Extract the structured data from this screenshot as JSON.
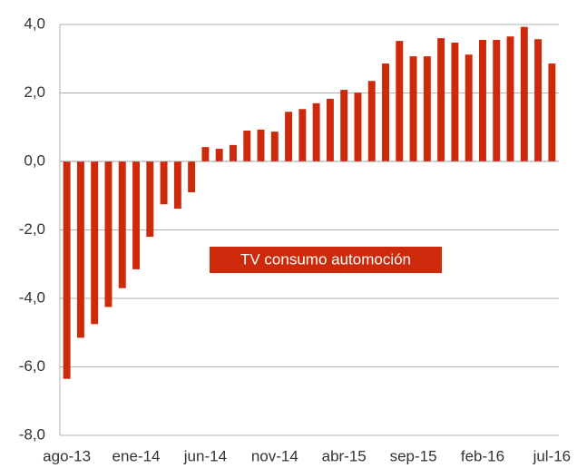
{
  "chart_data": {
    "type": "bar",
    "categories": [
      "ago-13",
      null,
      null,
      null,
      null,
      "ene-14",
      null,
      null,
      null,
      null,
      "jun-14",
      null,
      null,
      null,
      null,
      "nov-14",
      null,
      null,
      null,
      null,
      "abr-15",
      null,
      null,
      null,
      null,
      "sep-15",
      null,
      null,
      null,
      null,
      "feb-16",
      null,
      null,
      null,
      null,
      "jul-16"
    ],
    "series": [
      {
        "name": "TV consumo automoción",
        "color": "#cc2a0a",
        "values": [
          -6.35,
          -5.15,
          -4.75,
          -4.25,
          -3.7,
          -3.15,
          -2.2,
          -1.25,
          -1.38,
          -0.9,
          0.42,
          0.37,
          0.48,
          0.9,
          0.93,
          0.87,
          1.45,
          1.53,
          1.7,
          1.83,
          2.09,
          2.01,
          2.35,
          2.86,
          3.52,
          3.07,
          3.07,
          3.6,
          3.47,
          3.12,
          3.55,
          3.55,
          3.65,
          3.93,
          3.57,
          2.86
        ]
      }
    ],
    "ylim": [
      -8,
      4
    ],
    "yticks": [
      {
        "value": -8,
        "label": "-8,0"
      },
      {
        "value": -6,
        "label": "-6,0"
      },
      {
        "value": -4,
        "label": "-4,0"
      },
      {
        "value": -2,
        "label": "-2,0"
      },
      {
        "value": 0,
        "label": "0,0"
      },
      {
        "value": 2,
        "label": "2,0"
      },
      {
        "value": 4,
        "label": "4,0"
      }
    ],
    "grid": true
  }
}
